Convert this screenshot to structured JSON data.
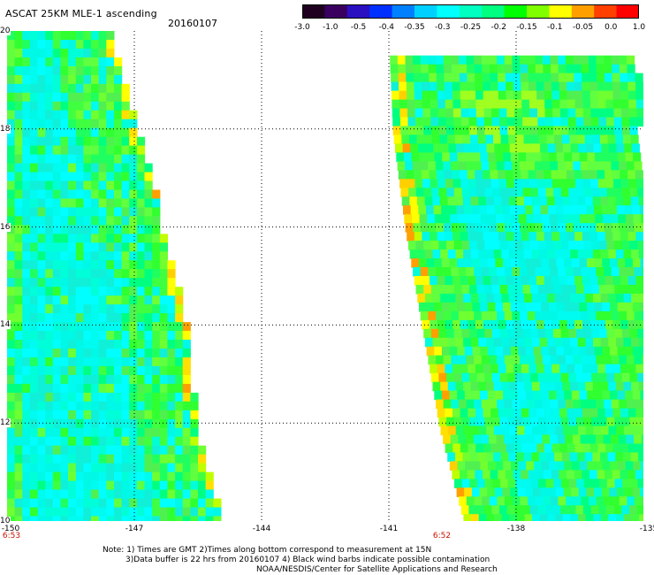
{
  "header": {
    "title": "ASCAT 25KM MLE-1 ascending",
    "date": "20160107"
  },
  "colorbar": {
    "colors": [
      "#200020",
      "#3a0060",
      "#2a10c0",
      "#0030ff",
      "#0080ff",
      "#00d0ff",
      "#00ffff",
      "#00ffc0",
      "#00ff80",
      "#00ff00",
      "#80ff00",
      "#ffff00",
      "#ffa000",
      "#ff4000",
      "#ff0000"
    ],
    "ticks": [
      "-3.0",
      "-1.0",
      "-0.5",
      "-0.4",
      "-0.35",
      "-0.3",
      "-0.25",
      "-0.2",
      "-0.15",
      "-0.1",
      "-0.05",
      "0.0",
      "1.0"
    ]
  },
  "map": {
    "lon_range": [
      -150,
      -135
    ],
    "lat_range": [
      10,
      20
    ],
    "lat_labels": [
      "20",
      "18",
      "16",
      "14",
      "12",
      "10"
    ],
    "lon_labels": [
      "-150",
      "-147",
      "-144",
      "-141",
      "-138",
      "-135"
    ],
    "pass_times": [
      "6:53",
      "6:52"
    ],
    "swaths": [
      {
        "name": "west-swath",
        "lon_west": -150,
        "east_edge": [
          [
            20,
            -147.6
          ],
          [
            18,
            -147.0
          ],
          [
            17,
            -146.6
          ],
          [
            16,
            -146.4
          ],
          [
            14,
            -145.8
          ],
          [
            12,
            -145.6
          ],
          [
            10,
            -145.0
          ]
        ]
      },
      {
        "name": "east-swath",
        "lon_west_edge": [
          [
            20,
            -141.0
          ],
          [
            18,
            -140.9
          ],
          [
            16,
            -140.6
          ],
          [
            14,
            -140.2
          ],
          [
            12,
            -139.8
          ],
          [
            10,
            -139.2
          ]
        ],
        "lon_east": -135
      }
    ]
  },
  "notes": {
    "line1": "Note: 1) Times are GMT 2)Times along bottom correspond to measurement at 15N",
    "line2": "3)Data buffer is 22 hrs from 20160107 4) Black wind barbs indicate possible contamination",
    "line3": "NOAA/NESDIS/Center for Satellite Applications and Research"
  }
}
